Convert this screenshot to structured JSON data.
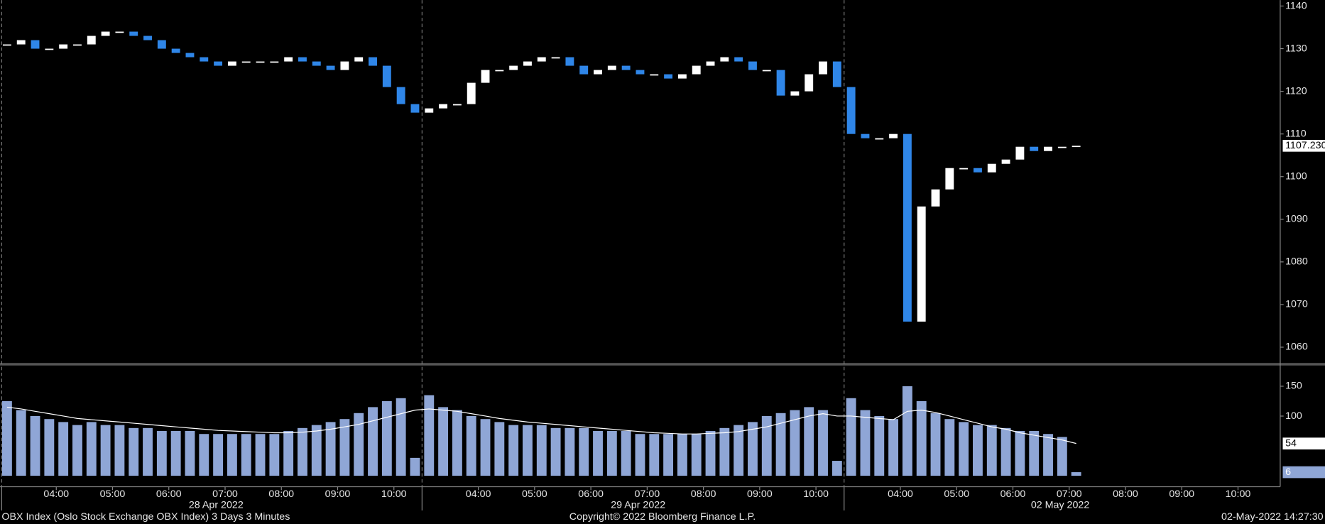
{
  "chart_data": {
    "type": "candlestick",
    "title": "OBX Index (Oslo Stock Exchange OBX Index) 3 Days 3 Minutes",
    "copyright": "Copyright© 2022 Bloomberg Finance L.P.",
    "timestamp": "02-May-2022 14:27:30",
    "days": [
      "28 Apr 2022",
      "29 Apr 2022",
      "02 May 2022"
    ],
    "categories": [
      null,
      null,
      null,
      null,
      "04:00",
      null,
      null,
      null,
      "05:00",
      null,
      null,
      null,
      "06:00",
      null,
      null,
      null,
      "07:00",
      null,
      null,
      null,
      "08:00",
      null,
      null,
      null,
      "09:00",
      null,
      null,
      null,
      "10:00",
      null,
      null,
      null,
      null,
      null,
      "04:00",
      null,
      null,
      null,
      "05:00",
      null,
      null,
      null,
      "06:00",
      null,
      null,
      null,
      "07:00",
      null,
      null,
      null,
      "08:00",
      null,
      null,
      null,
      "09:00",
      null,
      null,
      null,
      "10:00",
      null,
      null,
      null,
      null,
      null,
      "04:00",
      null,
      null,
      null,
      "05:00",
      null,
      null,
      null,
      "06:00",
      null,
      null,
      null,
      "07:00",
      null,
      null,
      null,
      "08:00",
      null,
      null,
      null,
      "09:00",
      null,
      null,
      null,
      "10:00",
      null,
      null
    ],
    "price": {
      "color_up": "#ffffff",
      "color_down": "#2f86e8",
      "values": [
        1131,
        1132,
        1130,
        1130,
        1131,
        1131,
        1133,
        1134,
        1134,
        1133,
        1132,
        1130,
        1129,
        1128,
        1127,
        1126,
        1127,
        1127,
        1127,
        1127,
        1128,
        1127,
        1126,
        1125,
        1127,
        1128,
        1126,
        1121,
        1117,
        1115,
        1116,
        1117,
        1117,
        1122,
        1125,
        1125,
        1126,
        1127,
        1128,
        1128,
        1126,
        1124,
        1125,
        1126,
        1125,
        1124,
        1124,
        1123,
        1124,
        1126,
        1127,
        1128,
        1127,
        1125,
        1125,
        1119,
        1120,
        1124,
        1127,
        1121,
        1110,
        1109,
        1109,
        1110,
        1066,
        1093,
        1097,
        1102,
        1102,
        1101,
        1103,
        1104,
        1107,
        1106,
        1107,
        1107,
        1107.23,
        null,
        null,
        null,
        null,
        null,
        null,
        null,
        null,
        null,
        null,
        null,
        null,
        null,
        null
      ],
      "last_label": "1107.230"
    },
    "volume": {
      "color": "#8fa6d6",
      "ma_color": "#ffffff",
      "values": [
        125,
        110,
        100,
        95,
        90,
        85,
        90,
        85,
        85,
        80,
        80,
        75,
        75,
        75,
        70,
        70,
        70,
        70,
        70,
        70,
        75,
        80,
        85,
        90,
        95,
        105,
        115,
        125,
        130,
        30,
        135,
        115,
        110,
        100,
        95,
        90,
        85,
        85,
        85,
        80,
        80,
        80,
        75,
        75,
        75,
        70,
        70,
        70,
        70,
        70,
        75,
        80,
        85,
        90,
        100,
        105,
        110,
        115,
        110,
        25,
        130,
        110,
        100,
        95,
        150,
        125,
        105,
        95,
        90,
        85,
        85,
        80,
        75,
        75,
        70,
        65,
        6,
        null,
        null,
        null,
        null,
        null,
        null,
        null,
        null,
        null,
        null,
        null,
        null,
        null,
        null
      ],
      "ma_values": [
        115,
        112,
        108,
        104,
        100,
        96,
        94,
        92,
        90,
        88,
        86,
        84,
        82,
        80,
        78,
        76,
        75,
        74,
        73,
        72,
        72,
        73,
        75,
        78,
        82,
        86,
        92,
        98,
        104,
        110,
        112,
        110,
        108,
        104,
        100,
        96,
        93,
        90,
        88,
        86,
        84,
        82,
        80,
        78,
        76,
        74,
        72,
        71,
        70,
        70,
        71,
        72,
        74,
        78,
        82,
        88,
        94,
        100,
        104,
        100,
        100,
        98,
        96,
        94,
        108,
        110,
        106,
        100,
        94,
        88,
        82,
        78,
        72,
        68,
        64,
        60,
        54,
        null,
        null,
        null,
        null,
        null,
        null,
        null,
        null,
        null,
        null,
        null,
        null,
        null,
        null
      ]
    },
    "ylim": [
      1056.2,
      1141.4
    ],
    "yticks": [
      1060,
      1070,
      1080,
      1090,
      1100,
      1110,
      1120,
      1130,
      1140
    ],
    "y2lim": [
      0,
      184
    ],
    "y2ticks": [
      100,
      150
    ]
  }
}
